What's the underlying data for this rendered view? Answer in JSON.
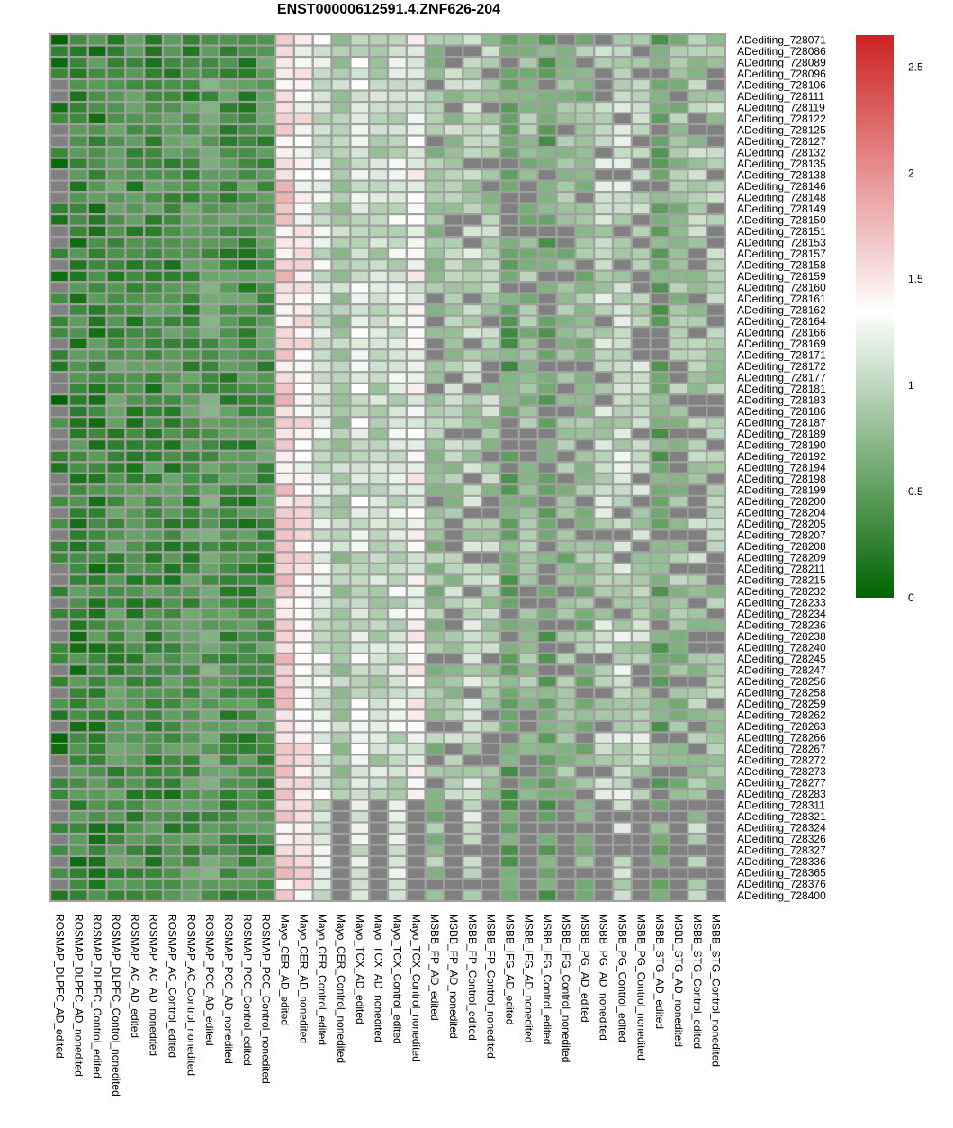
{
  "chart_data": {
    "type": "heatmap",
    "title": "ENST00000612591.4.ZNF626-204",
    "columns": [
      "ROSMAP_DLPFC_AD_edited",
      "ROSMAP_DLPFC_AD_nonedited",
      "ROSMAP_DLPFC_Control_edited",
      "ROSMAP_DLPFC_Control_nonedited",
      "ROSMAP_AC_AD_edited",
      "ROSMAP_AC_AD_nonedited",
      "ROSMAP_AC_Control_edited",
      "ROSMAP_AC_Control_nonedited",
      "ROSMAP_PCC_AD_edited",
      "ROSMAP_PCC_AD_nonedited",
      "ROSMAP_PCC_Control_edited",
      "ROSMAP_PCC_Control_nonedited",
      "Mayo_CER_AD_edited",
      "Mayo_CER_AD_nonedited",
      "Mayo_CER_Control_edited",
      "Mayo_CER_Control_nonedited",
      "Mayo_TCX_AD_edited",
      "Mayo_TCX_AD_nonedited",
      "Mayo_TCX_Control_edited",
      "Mayo_TCX_Control_nonedited",
      "MSBB_FP_AD_edited",
      "MSBB_FP_AD_nonedited",
      "MSBB_FP_Control_edited",
      "MSBB_FP_Control_nonedited",
      "MSBB_IFG_AD_edited",
      "MSBB_IFG_AD_nonedited",
      "MSBB_IFG_Control_edited",
      "MSBB_IFG_Control_nonedited",
      "MSBB_PG_AD_edited",
      "MSBB_PG_AD_nonedited",
      "MSBB_PG_Control_edited",
      "MSBB_PG_Control_nonedited",
      "MSBB_STG_AD_edited",
      "MSBB_STG_AD_nonedited",
      "MSBB_STG_Control_edited",
      "MSBB_STG_Control_nonedited"
    ],
    "rows": [
      "ADediting_728071",
      "ADediting_728086",
      "ADediting_728089",
      "ADediting_728096",
      "ADediting_728106",
      "ADediting_728111",
      "ADediting_728119",
      "ADediting_728122",
      "ADediting_728125",
      "ADediting_728127",
      "ADediting_728132",
      "ADediting_728135",
      "ADediting_728138",
      "ADediting_728146",
      "ADediting_728148",
      "ADediting_728149",
      "ADediting_728150",
      "ADediting_728151",
      "ADediting_728153",
      "ADediting_728157",
      "ADediting_728158",
      "ADediting_728159",
      "ADediting_728160",
      "ADediting_728161",
      "ADediting_728162",
      "ADediting_728164",
      "ADediting_728166",
      "ADediting_728169",
      "ADediting_728171",
      "ADediting_728172",
      "ADediting_728177",
      "ADediting_728181",
      "ADediting_728183",
      "ADediting_728186",
      "ADediting_728187",
      "ADediting_728189",
      "ADediting_728190",
      "ADediting_728192",
      "ADediting_728194",
      "ADediting_728198",
      "ADediting_728199",
      "ADediting_728200",
      "ADediting_728204",
      "ADediting_728205",
      "ADediting_728207",
      "ADediting_728208",
      "ADediting_728209",
      "ADediting_728211",
      "ADediting_728215",
      "ADediting_728232",
      "ADediting_728233",
      "ADediting_728234",
      "ADediting_728236",
      "ADediting_728238",
      "ADediting_728240",
      "ADediting_728245",
      "ADediting_728247",
      "ADediting_728256",
      "ADediting_728258",
      "ADediting_728259",
      "ADediting_728262",
      "ADediting_728263",
      "ADediting_728266",
      "ADediting_728267",
      "ADediting_728272",
      "ADediting_728273",
      "ADediting_728277",
      "ADediting_728283",
      "ADediting_728311",
      "ADediting_728321",
      "ADediting_728324",
      "ADediting_728326",
      "ADediting_728327",
      "ADediting_728336",
      "ADediting_728365",
      "ADediting_728376",
      "ADediting_728400"
    ],
    "column_typical_values": [
      0.2,
      0.3,
      0.3,
      0.4,
      0.35,
      0.35,
      0.35,
      0.4,
      0.5,
      0.4,
      0.35,
      0.4,
      1.6,
      1.45,
      1.15,
      0.9,
      1.15,
      1.0,
      1.1,
      1.3,
      0.8,
      0.9,
      1.0,
      0.9,
      0.55,
      0.8,
      0.55,
      0.75,
      0.75,
      1.0,
      1.05,
      1.0,
      0.6,
      0.8,
      0.9,
      0.9
    ],
    "gray_na_cells": [
      [
        4,
        0
      ],
      [
        5,
        0
      ],
      [
        8,
        0
      ],
      [
        9,
        0
      ],
      [
        12,
        0
      ],
      [
        13,
        0
      ],
      [
        14,
        0
      ],
      [
        17,
        0
      ],
      [
        18,
        0
      ],
      [
        20,
        0
      ],
      [
        22,
        0
      ],
      [
        24,
        0
      ],
      [
        27,
        0
      ],
      [
        30,
        0
      ],
      [
        31,
        0
      ],
      [
        33,
        0
      ],
      [
        35,
        0
      ],
      [
        36,
        0
      ],
      [
        39,
        0
      ],
      [
        40,
        0
      ],
      [
        42,
        0
      ],
      [
        44,
        0
      ],
      [
        47,
        0
      ],
      [
        48,
        0
      ],
      [
        50,
        0
      ],
      [
        52,
        0
      ],
      [
        53,
        0
      ],
      [
        56,
        0
      ],
      [
        58,
        0
      ],
      [
        61,
        0
      ],
      [
        64,
        0
      ],
      [
        65,
        0
      ],
      [
        68,
        0
      ],
      [
        69,
        0
      ],
      [
        71,
        0
      ],
      [
        73,
        0
      ],
      [
        75,
        0
      ]
    ],
    "colorbar": {
      "min": 0,
      "max": 2.65,
      "ticks": [
        0,
        0.5,
        1,
        1.5,
        2,
        2.5
      ],
      "tick_labels": [
        "0",
        "0.5",
        "1",
        "1.5",
        "2",
        "2.5"
      ],
      "low_color": "#006400",
      "mid_color": "#ffffff",
      "mid_value": 1.35,
      "high_color": "#cc2222"
    },
    "na_color": "#808080",
    "grid_color": "#a0a0a0"
  }
}
